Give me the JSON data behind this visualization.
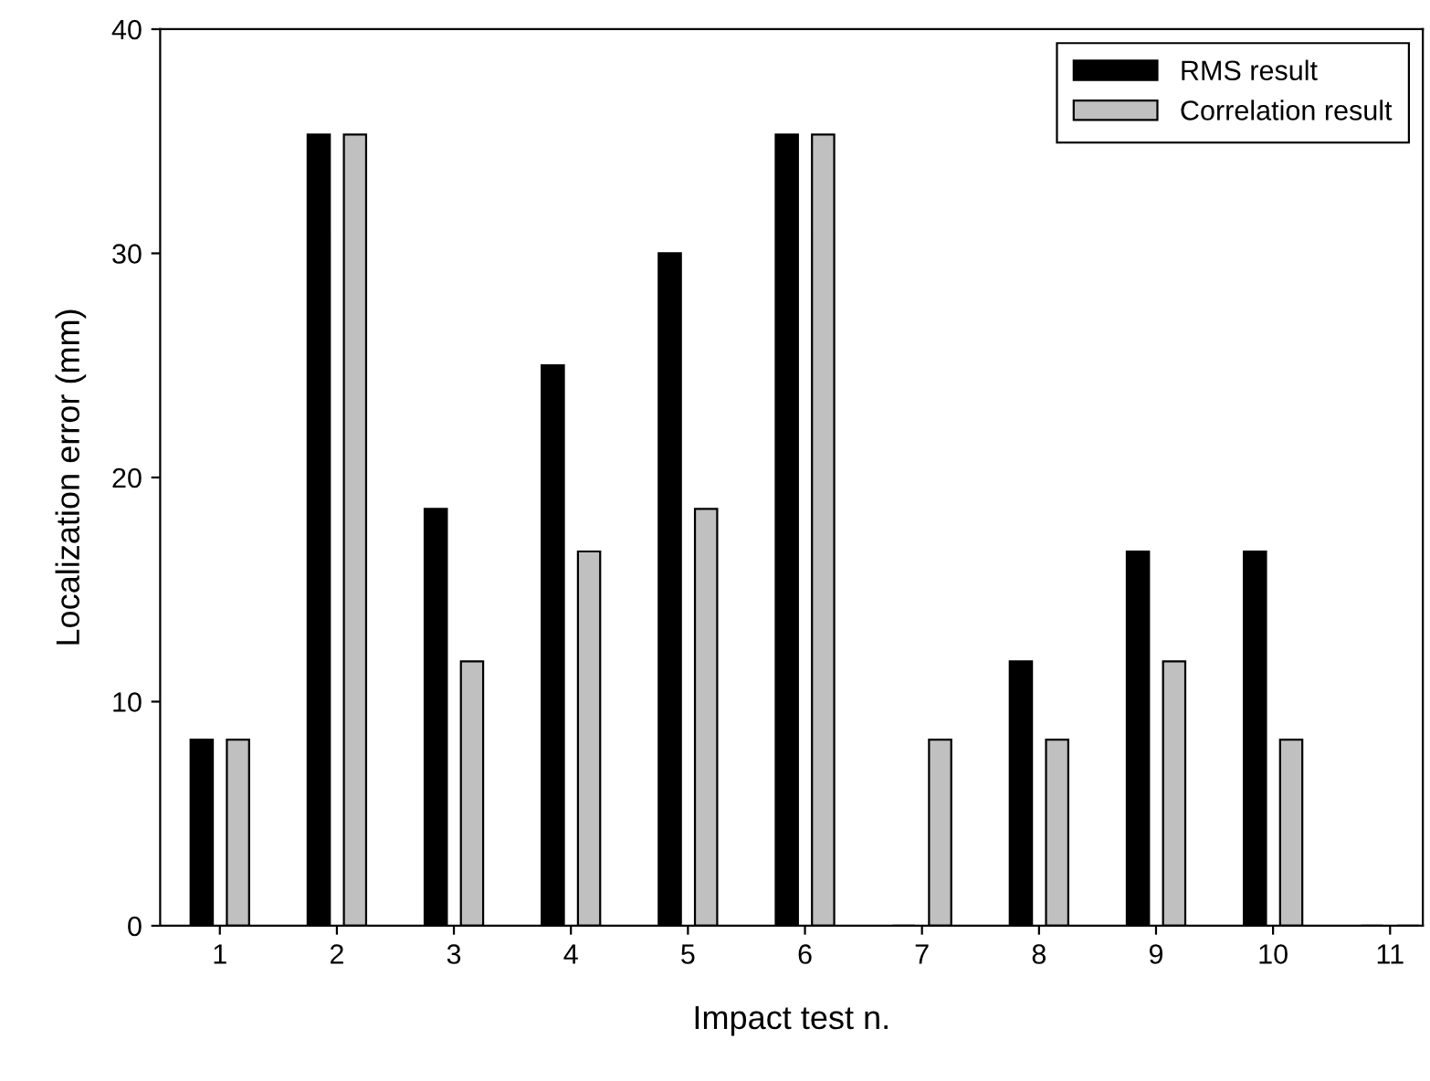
{
  "chart_data": {
    "type": "bar",
    "xlabel": "Impact test n.",
    "ylabel": "Localization error (mm)",
    "categories": [
      "1",
      "2",
      "3",
      "4",
      "5",
      "6",
      "7",
      "8",
      "9",
      "10",
      "11"
    ],
    "series": [
      {
        "name": "RMS result",
        "color": "#000000",
        "values": [
          8.3,
          35.3,
          18.6,
          25,
          30,
          35.3,
          0,
          11.8,
          16.7,
          16.7,
          0
        ]
      },
      {
        "name": "Correlation result",
        "color": "#c0c0c0",
        "values": [
          8.3,
          35.3,
          11.8,
          16.7,
          18.6,
          35.3,
          8.3,
          8.3,
          11.8,
          8.3,
          0
        ]
      }
    ],
    "ylim": [
      0,
      40
    ],
    "yticks": [
      0,
      10,
      20,
      30,
      40
    ],
    "grid": false,
    "legend": "top right"
  }
}
